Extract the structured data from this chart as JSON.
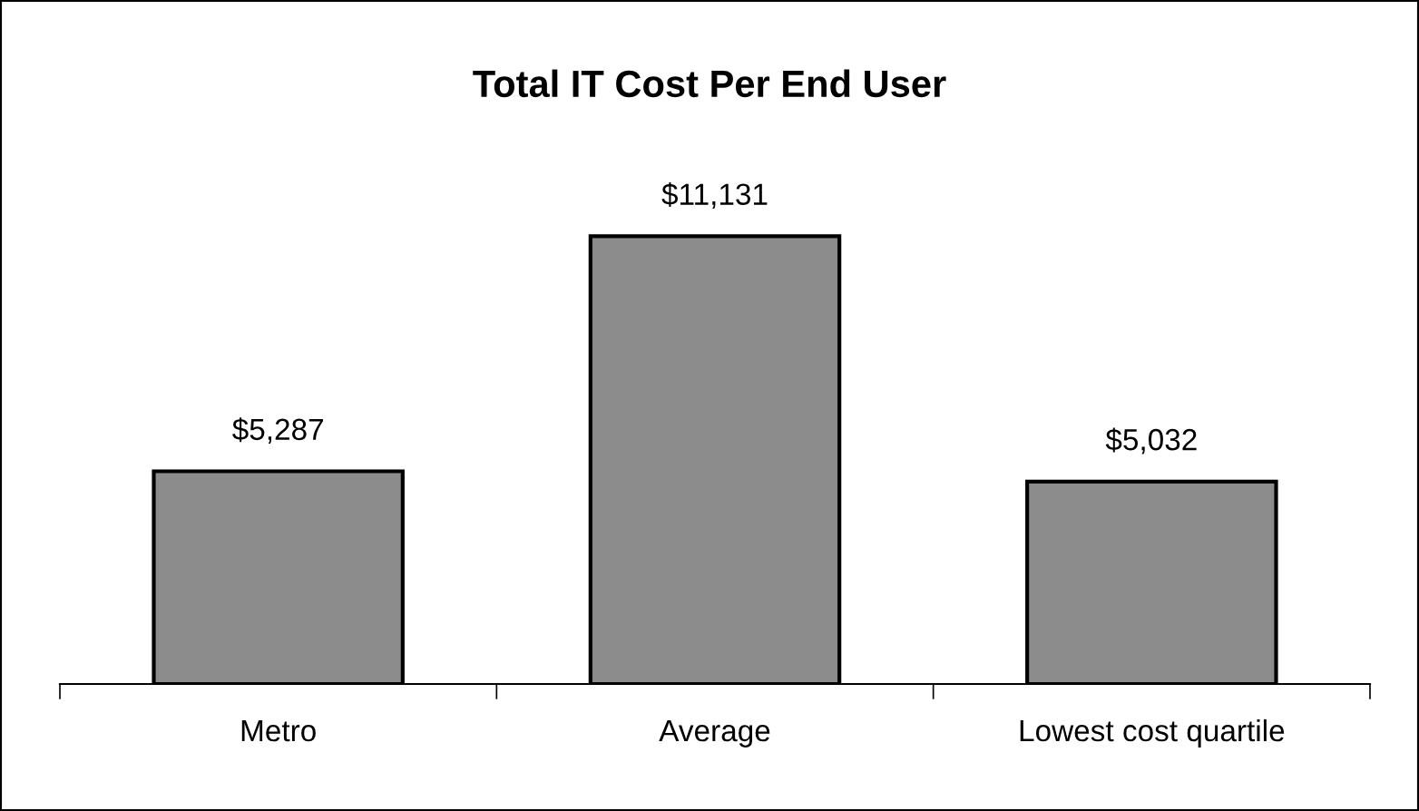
{
  "chart_data": {
    "type": "bar",
    "title": "Total IT Cost Per End User",
    "categories": [
      "Metro",
      "Average",
      "Lowest cost quartile"
    ],
    "values": [
      5287,
      11131,
      5032
    ],
    "value_labels": [
      "$5,287",
      "$11,131",
      "$5,032"
    ],
    "color": "#8c8c8c",
    "grid": false,
    "legend": false
  }
}
